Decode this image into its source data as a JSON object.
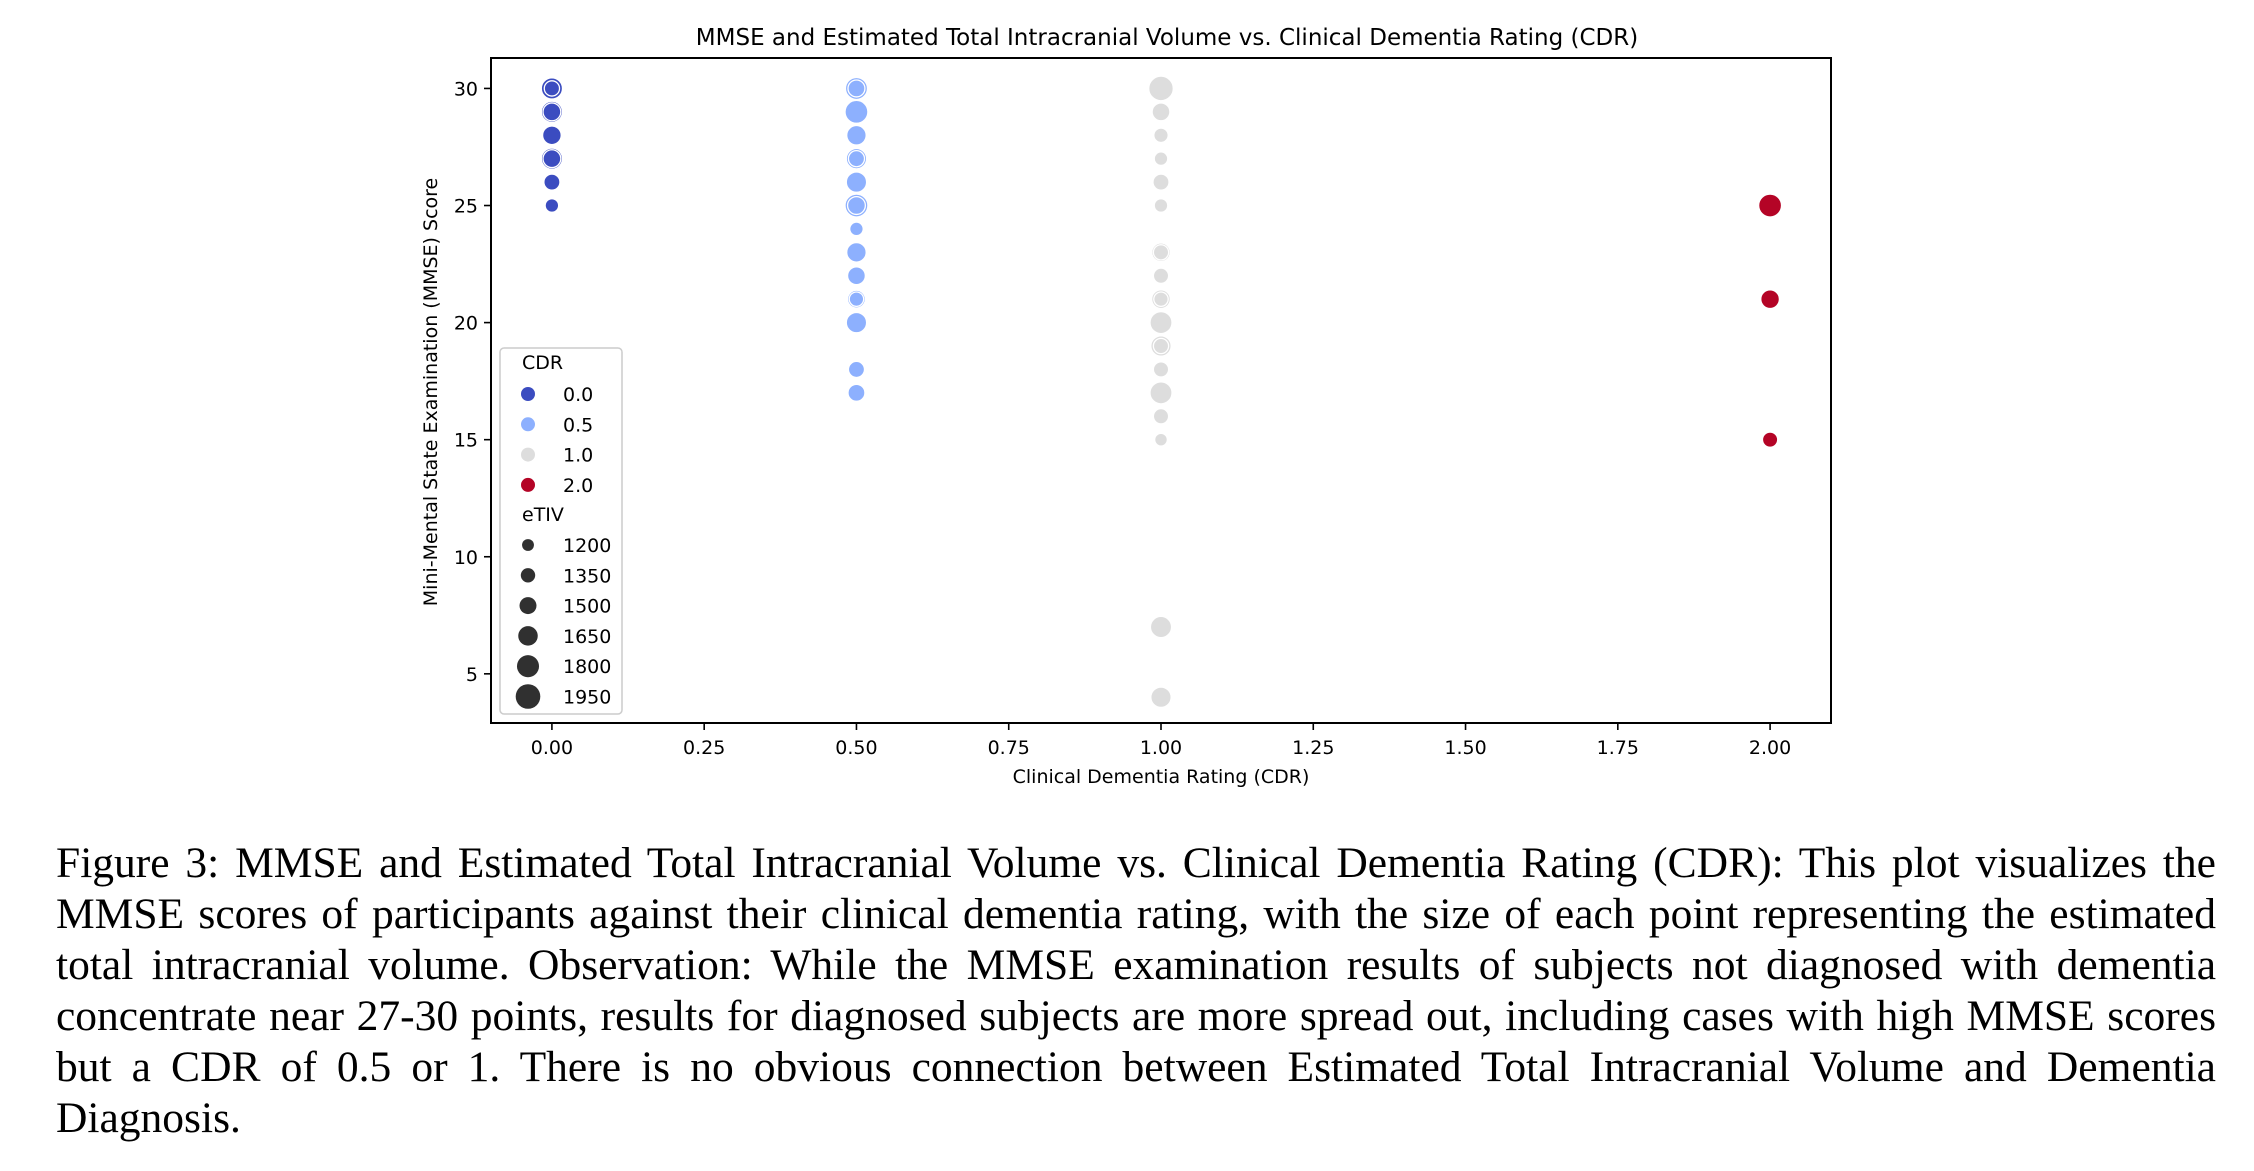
{
  "chart_data": {
    "type": "scatter",
    "title": "MMSE and Estimated Total Intracranial Volume vs. Clinical Dementia Rating (CDR)",
    "xlabel": "Clinical Dementia Rating (CDR)",
    "ylabel": "Mini-Mental State Examination (MMSE) Score",
    "xlim": [
      -0.1,
      2.1
    ],
    "ylim": [
      2.9,
      31.3
    ],
    "xticks": [
      "0.00",
      "0.25",
      "0.50",
      "0.75",
      "1.00",
      "1.25",
      "1.50",
      "1.75",
      "2.00"
    ],
    "yticks": [
      "5",
      "10",
      "15",
      "20",
      "25",
      "30"
    ],
    "grid": false,
    "legend_position": "lower-left",
    "hue_legend_title": "CDR",
    "hue_legend": [
      {
        "label": "0.0",
        "color": "#3b4cc0"
      },
      {
        "label": "0.5",
        "color": "#8db0fe"
      },
      {
        "label": "1.0",
        "color": "#dddddd"
      },
      {
        "label": "2.0",
        "color": "#b40426"
      }
    ],
    "size_legend_title": "eTIV",
    "size_legend": [
      "1200",
      "1350",
      "1500",
      "1650",
      "1800",
      "1950"
    ],
    "series": [
      {
        "name": "0.0",
        "color": "#3b4cc0",
        "points": [
          {
            "x": 0,
            "y": 30,
            "etiv": 1750
          },
          {
            "x": 0,
            "y": 30,
            "etiv": 1400
          },
          {
            "x": 0,
            "y": 29,
            "etiv": 1750
          },
          {
            "x": 0,
            "y": 29,
            "etiv": 1550
          },
          {
            "x": 0,
            "y": 28,
            "etiv": 1600
          },
          {
            "x": 0,
            "y": 27,
            "etiv": 1750
          },
          {
            "x": 0,
            "y": 27,
            "etiv": 1550
          },
          {
            "x": 0,
            "y": 26,
            "etiv": 1450
          },
          {
            "x": 0,
            "y": 25,
            "etiv": 1300
          }
        ]
      },
      {
        "name": "0.5",
        "color": "#8db0fe",
        "points": [
          {
            "x": 0.5,
            "y": 30,
            "etiv": 1800
          },
          {
            "x": 0.5,
            "y": 30,
            "etiv": 1500
          },
          {
            "x": 0.5,
            "y": 29,
            "etiv": 1850
          },
          {
            "x": 0.5,
            "y": 28,
            "etiv": 1650
          },
          {
            "x": 0.5,
            "y": 27,
            "etiv": 1700
          },
          {
            "x": 0.5,
            "y": 27,
            "etiv": 1450
          },
          {
            "x": 0.5,
            "y": 26,
            "etiv": 1700
          },
          {
            "x": 0.5,
            "y": 25,
            "etiv": 1850
          },
          {
            "x": 0.5,
            "y": 25,
            "etiv": 1550
          },
          {
            "x": 0.5,
            "y": 24,
            "etiv": 1300
          },
          {
            "x": 0.5,
            "y": 23,
            "etiv": 1650
          },
          {
            "x": 0.5,
            "y": 22,
            "etiv": 1550
          },
          {
            "x": 0.5,
            "y": 21,
            "etiv": 1550
          },
          {
            "x": 0.5,
            "y": 21,
            "etiv": 1350
          },
          {
            "x": 0.5,
            "y": 20,
            "etiv": 1700
          },
          {
            "x": 0.5,
            "y": 18,
            "etiv": 1450
          },
          {
            "x": 0.5,
            "y": 17,
            "etiv": 1500
          }
        ]
      },
      {
        "name": "1.0",
        "color": "#dddddd",
        "points": [
          {
            "x": 1,
            "y": 30,
            "etiv": 1950
          },
          {
            "x": 1,
            "y": 29,
            "etiv": 1550
          },
          {
            "x": 1,
            "y": 28,
            "etiv": 1350
          },
          {
            "x": 1,
            "y": 27,
            "etiv": 1300
          },
          {
            "x": 1,
            "y": 26,
            "etiv": 1450
          },
          {
            "x": 1,
            "y": 25,
            "etiv": 1300
          },
          {
            "x": 1,
            "y": 23,
            "etiv": 1600
          },
          {
            "x": 1,
            "y": 23,
            "etiv": 1400
          },
          {
            "x": 1,
            "y": 22,
            "etiv": 1400
          },
          {
            "x": 1,
            "y": 21,
            "etiv": 1600
          },
          {
            "x": 1,
            "y": 21,
            "etiv": 1350
          },
          {
            "x": 1,
            "y": 20,
            "etiv": 1800
          },
          {
            "x": 1,
            "y": 19,
            "etiv": 1700
          },
          {
            "x": 1,
            "y": 19,
            "etiv": 1400
          },
          {
            "x": 1,
            "y": 18,
            "etiv": 1400
          },
          {
            "x": 1,
            "y": 17,
            "etiv": 1800
          },
          {
            "x": 1,
            "y": 16,
            "etiv": 1400
          },
          {
            "x": 1,
            "y": 15,
            "etiv": 1250
          },
          {
            "x": 1,
            "y": 7,
            "etiv": 1750
          },
          {
            "x": 1,
            "y": 4,
            "etiv": 1700
          }
        ]
      },
      {
        "name": "2.0",
        "color": "#b40426",
        "points": [
          {
            "x": 2,
            "y": 25,
            "etiv": 1850
          },
          {
            "x": 2,
            "y": 21,
            "etiv": 1600
          },
          {
            "x": 2,
            "y": 15,
            "etiv": 1400
          }
        ]
      }
    ]
  },
  "caption": "Figure 3: MMSE and Estimated Total Intracranial Volume vs. Clinical Dementia Rating (CDR): This plot visualizes the MMSE scores of participants against their clinical dementia rating, with the size of each point representing the estimated total intracranial volume. Observation: While the MMSE examination results of subjects not diagnosed with dementia concentrate near 27-30 points, results for diagnosed subjects are more spread out, including cases with high MMSE scores but a CDR of 0.5 or 1. There is no obvious connection between Estimated Total Intracranial Volume and Dementia Diagnosis."
}
